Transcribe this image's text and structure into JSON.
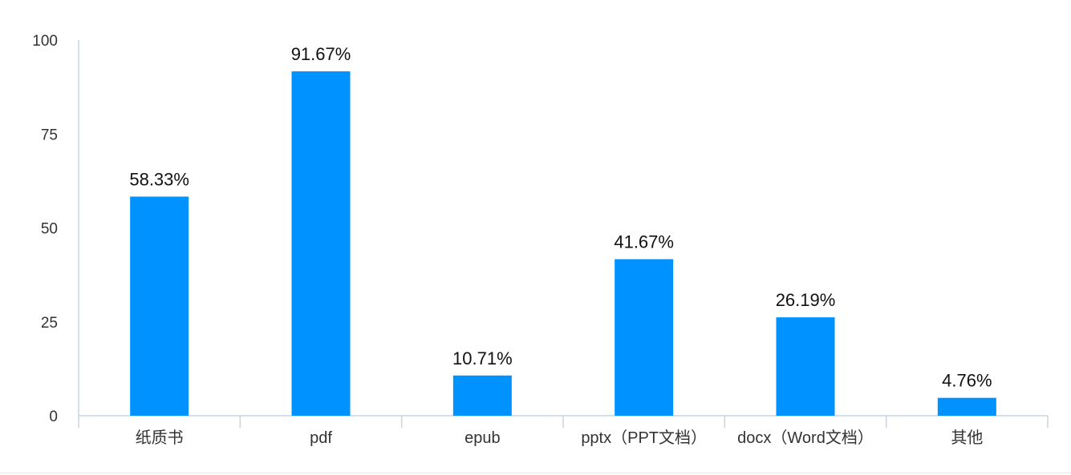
{
  "colors": {
    "bar": "#0093ff",
    "axis": "#c9d3df",
    "text": "#333333"
  },
  "chart_data": {
    "type": "bar",
    "title": "",
    "xlabel": "",
    "ylabel": "",
    "ylim": [
      0,
      100
    ],
    "yticks": [
      "0",
      "25",
      "50",
      "75",
      "100"
    ],
    "categories": [
      "纸质书",
      "pdf",
      "epub",
      "pptx（PPT文档）",
      "docx（Word文档）",
      "其他"
    ],
    "values": [
      58.33,
      91.67,
      10.71,
      41.67,
      26.19,
      4.76
    ],
    "data_labels": [
      "58.33%",
      "91.67%",
      "10.71%",
      "41.67%",
      "26.19%",
      "4.76%"
    ],
    "grid": false,
    "legend": "none"
  }
}
